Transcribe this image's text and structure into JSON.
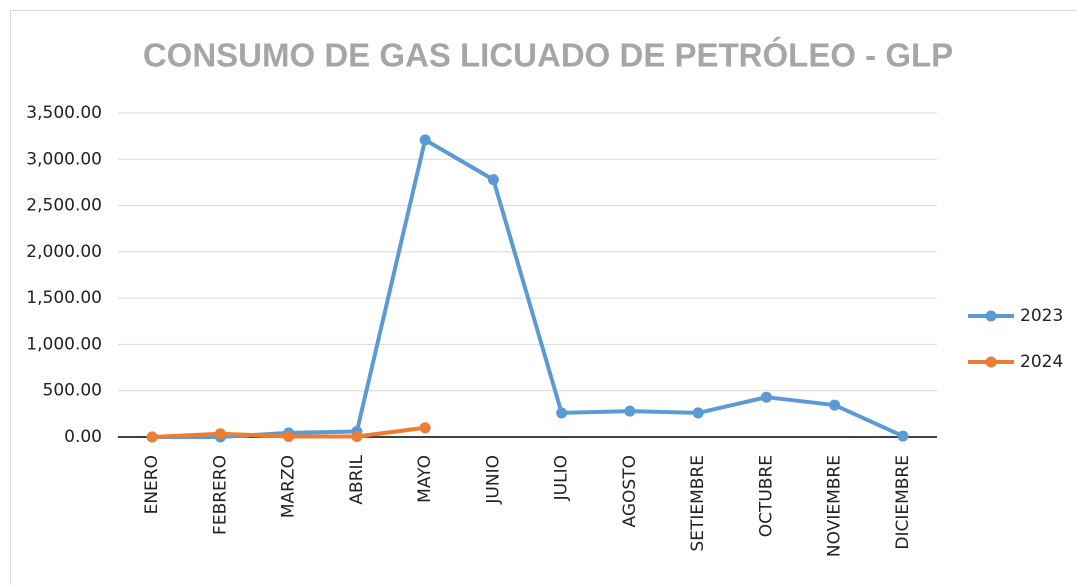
{
  "chart_data": {
    "type": "line",
    "title": "CONSUMO DE GAS LICUADO DE PETRÓLEO - GLP",
    "categories": [
      "ENERO",
      "FEBRERO",
      "MARZO",
      "ABRIL",
      "MAYO",
      "JUNIO",
      "JULIO",
      "AGOSTO",
      "SETIEMBRE",
      "OCTUBRE",
      "NOVIEMBRE",
      "DICIEMBRE"
    ],
    "series": [
      {
        "name": "2023",
        "color": "#5b9bd5",
        "values": [
          0,
          0,
          45,
          60,
          3210,
          2780,
          260,
          280,
          260,
          430,
          345,
          10
        ]
      },
      {
        "name": "2024",
        "color": "#ed7d31",
        "values": [
          0,
          35,
          5,
          5,
          100,
          null,
          null,
          null,
          null,
          null,
          null,
          null
        ]
      }
    ],
    "ylim": [
      0,
      3500
    ],
    "yticks": [
      {
        "value": 0,
        "label": "0.00"
      },
      {
        "value": 500,
        "label": "500.00"
      },
      {
        "value": 1000,
        "label": "1,000.00"
      },
      {
        "value": 1500,
        "label": "1,500.00"
      },
      {
        "value": 2000,
        "label": "2,000.00"
      },
      {
        "value": 2500,
        "label": "2,500.00"
      },
      {
        "value": 3000,
        "label": "3,000.00"
      },
      {
        "value": 3500,
        "label": "3,500.00"
      }
    ],
    "grid": true,
    "legend": "right"
  }
}
